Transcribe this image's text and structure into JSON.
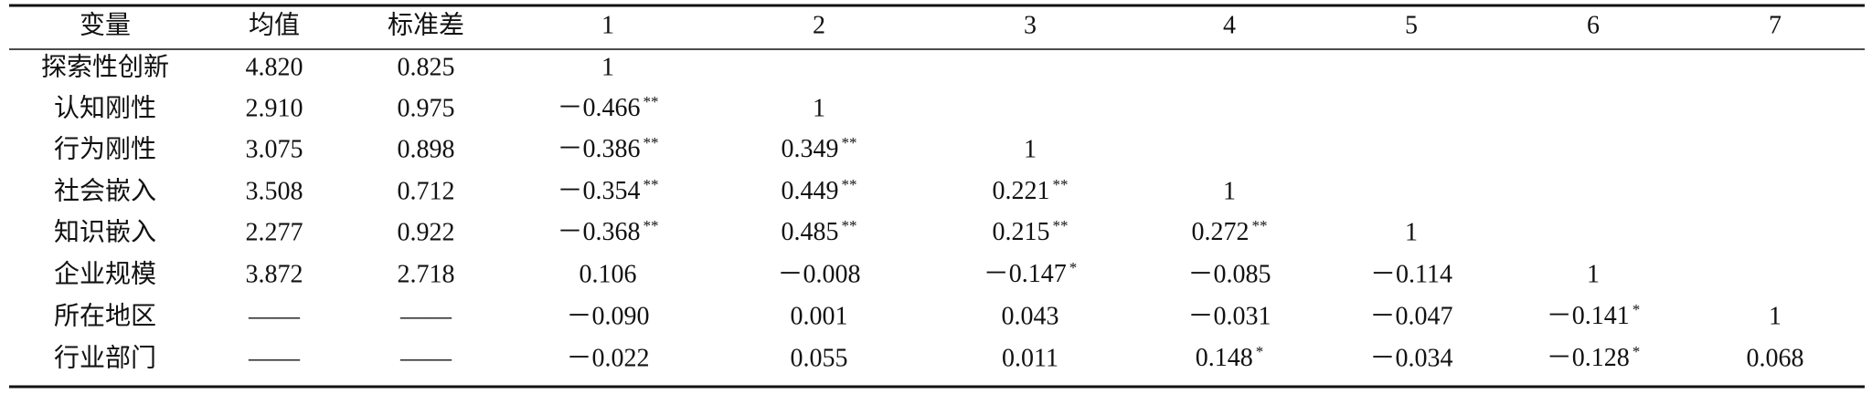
{
  "table": {
    "header": [
      "变量",
      "均值",
      "标准差",
      "1",
      "2",
      "3",
      "4",
      "5",
      "6",
      "7"
    ],
    "rows": [
      [
        "探索性创新",
        "4.820",
        "0.825",
        "1"
      ],
      [
        "认知刚性",
        "2.910",
        "0.975",
        {
          "text": "－0.466",
          "sig": "**"
        },
        "1"
      ],
      [
        "行为刚性",
        "3.075",
        "0.898",
        {
          "text": "－0.386",
          "sig": "**"
        },
        {
          "text": "0.349",
          "sig": "**"
        },
        "1"
      ],
      [
        "社会嵌入",
        "3.508",
        "0.712",
        {
          "text": "－0.354",
          "sig": "**"
        },
        {
          "text": "0.449",
          "sig": "**"
        },
        {
          "text": "0.221",
          "sig": "**"
        },
        "1"
      ],
      [
        "知识嵌入",
        "2.277",
        "0.922",
        {
          "text": "－0.368",
          "sig": "**"
        },
        {
          "text": "0.485",
          "sig": "**"
        },
        {
          "text": "0.215",
          "sig": "**"
        },
        {
          "text": "0.272",
          "sig": "**"
        },
        "1"
      ],
      [
        "企业规模",
        "3.872",
        "2.718",
        "0.106",
        "－0.008",
        {
          "text": "－0.147",
          "sig": "*"
        },
        "－0.085",
        "－0.114",
        "1"
      ],
      [
        "所在地区",
        "——",
        "——",
        "－0.090",
        "0.001",
        "0.043",
        "－0.031",
        "－0.047",
        {
          "text": "－0.141",
          "sig": "*"
        },
        "1"
      ],
      [
        "行业部门",
        "——",
        "——",
        "－0.022",
        "0.055",
        "0.011",
        {
          "text": "0.148",
          "sig": "*"
        },
        "－0.034",
        {
          "text": "－0.128",
          "sig": "*"
        },
        "0.068"
      ]
    ]
  }
}
